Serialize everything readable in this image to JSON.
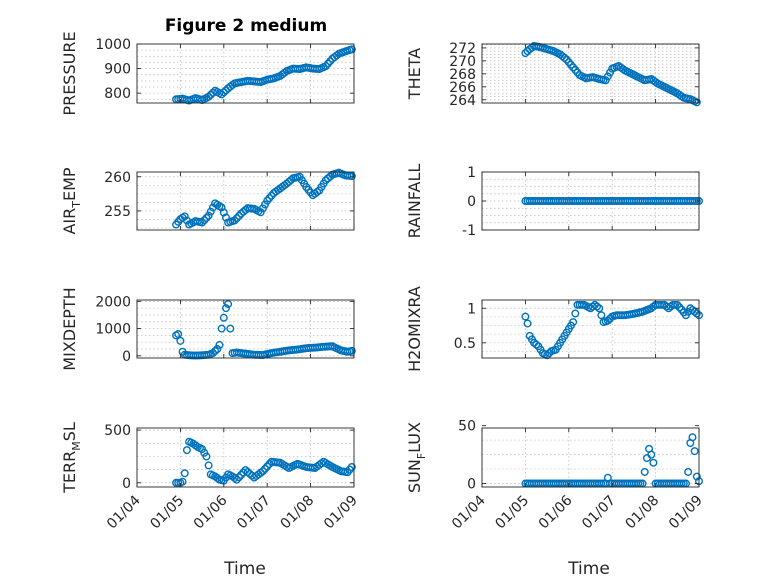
{
  "figure": {
    "title": "Figure 2 medium",
    "marker_color": "#0072BD",
    "x_tick_labels": [
      "01/04",
      "01/05",
      "01/06",
      "01/07",
      "01/08",
      "01/09"
    ],
    "x_label": "Time"
  },
  "chart_data": [
    {
      "type": "scatter",
      "name": "pressure",
      "ylabel": "PRESSURE",
      "ylim": [
        760,
        1000
      ],
      "yticks": [
        800,
        900,
        1000
      ],
      "xlim": [
        0,
        5
      ],
      "x": [
        0.9,
        1.05,
        1.2,
        1.35,
        1.5,
        1.65,
        1.8,
        1.95,
        2.1,
        2.25,
        2.4,
        2.55,
        2.7,
        2.85,
        3.0,
        3.15,
        3.3,
        3.45,
        3.6,
        3.75,
        3.9,
        4.05,
        4.2,
        4.35,
        4.5,
        4.65,
        4.8,
        4.95
      ],
      "y": [
        775,
        778,
        770,
        780,
        772,
        785,
        810,
        795,
        820,
        840,
        845,
        850,
        848,
        845,
        855,
        860,
        870,
        890,
        900,
        898,
        905,
        900,
        898,
        910,
        940,
        960,
        970,
        978
      ]
    },
    {
      "type": "scatter",
      "name": "theta",
      "ylabel": "THETA",
      "ylim": [
        263.5,
        272.6
      ],
      "yticks": [
        264,
        266,
        268,
        270,
        272
      ],
      "xlim": [
        0,
        5
      ],
      "x": [
        1.0,
        1.1,
        1.2,
        1.35,
        1.5,
        1.65,
        1.8,
        1.95,
        2.1,
        2.25,
        2.4,
        2.55,
        2.7,
        2.85,
        3.0,
        3.15,
        3.3,
        3.45,
        3.6,
        3.75,
        3.9,
        4.05,
        4.2,
        4.35,
        4.5,
        4.65,
        4.8,
        4.95
      ],
      "y": [
        271.2,
        271.8,
        272.3,
        272.1,
        271.8,
        271.5,
        271.0,
        270.2,
        269.0,
        267.8,
        267.3,
        267.5,
        267.2,
        267.0,
        268.8,
        269.2,
        268.5,
        268.0,
        267.5,
        267.0,
        267.2,
        266.5,
        266.0,
        265.5,
        265.0,
        264.3,
        264.1,
        263.6
      ]
    },
    {
      "type": "scatter",
      "name": "air_temp",
      "ylabel": "AIR_TEMP",
      "ylim": [
        252.2,
        260.7
      ],
      "yticks": [
        255,
        260
      ],
      "xlim": [
        0,
        5
      ],
      "x": [
        0.9,
        1.0,
        1.1,
        1.2,
        1.35,
        1.5,
        1.65,
        1.8,
        1.95,
        2.1,
        2.25,
        2.4,
        2.55,
        2.7,
        2.85,
        3.0,
        3.15,
        3.3,
        3.45,
        3.6,
        3.75,
        3.9,
        4.05,
        4.2,
        4.35,
        4.5,
        4.65,
        4.8,
        4.95
      ],
      "y": [
        253.0,
        253.8,
        254.2,
        253.0,
        253.5,
        253.3,
        254.3,
        256.1,
        255.5,
        253.3,
        253.6,
        254.6,
        255.4,
        255.3,
        254.8,
        256.5,
        257.6,
        258.3,
        259.0,
        259.8,
        260.0,
        258.5,
        257.3,
        258.0,
        259.5,
        260.3,
        260.6,
        260.2,
        260.1
      ]
    },
    {
      "type": "scatter",
      "name": "rainfall",
      "ylabel": "RAINFALL",
      "ylim": [
        -1,
        1
      ],
      "yticks": [
        -1,
        0,
        1
      ],
      "xlim": [
        0,
        5
      ],
      "x": [
        1.0,
        1.2,
        1.4,
        1.6,
        1.8,
        2.0,
        2.2,
        2.4,
        2.6,
        2.8,
        3.0,
        3.2,
        3.4,
        3.6,
        3.8,
        4.0,
        4.2,
        4.4,
        4.6,
        4.8,
        5.0
      ],
      "y": [
        0,
        0,
        0,
        0,
        0,
        0,
        0,
        0,
        0,
        0,
        0,
        0,
        0,
        0,
        0,
        0,
        0,
        0,
        0,
        0,
        0
      ]
    },
    {
      "type": "scatter",
      "name": "mixdepth",
      "ylabel": "MIXDEPTH",
      "ylim": [
        -80,
        2050
      ],
      "yticks": [
        0,
        1000,
        2000
      ],
      "xlim": [
        0,
        5
      ],
      "x": [
        0.9,
        0.95,
        1.0,
        1.05,
        1.1,
        1.2,
        1.35,
        1.5,
        1.65,
        1.75,
        1.85,
        1.9,
        1.95,
        2.0,
        2.05,
        2.1,
        2.15,
        2.2,
        2.3,
        2.5,
        2.7,
        2.9,
        3.1,
        3.3,
        3.5,
        3.7,
        3.9,
        4.1,
        4.3,
        4.5,
        4.7,
        4.85,
        4.95
      ],
      "y": [
        750,
        800,
        550,
        150,
        40,
        20,
        10,
        20,
        40,
        100,
        250,
        400,
        1000,
        1400,
        1750,
        1900,
        1000,
        100,
        120,
        80,
        40,
        30,
        100,
        150,
        200,
        230,
        280,
        300,
        330,
        350,
        200,
        150,
        180
      ]
    },
    {
      "type": "scatter",
      "name": "h2omixra",
      "ylabel": "H2OMIXRA",
      "ylim": [
        0.28,
        1.12
      ],
      "yticks": [
        0.5,
        1
      ],
      "xlim": [
        0,
        5
      ],
      "x": [
        1.0,
        1.05,
        1.1,
        1.2,
        1.3,
        1.4,
        1.5,
        1.6,
        1.7,
        1.8,
        1.9,
        2.0,
        2.1,
        2.2,
        2.35,
        2.5,
        2.6,
        2.7,
        2.8,
        2.9,
        3.0,
        3.1,
        3.3,
        3.5,
        3.7,
        3.9,
        4.0,
        4.1,
        4.2,
        4.3,
        4.4,
        4.5,
        4.6,
        4.7,
        4.8,
        4.9,
        5.0
      ],
      "y": [
        0.88,
        0.78,
        0.6,
        0.5,
        0.45,
        0.35,
        0.32,
        0.38,
        0.4,
        0.5,
        0.6,
        0.7,
        0.8,
        1.05,
        1.05,
        1.0,
        1.05,
        1.0,
        0.8,
        0.82,
        0.88,
        0.9,
        0.9,
        0.92,
        0.95,
        1.0,
        1.05,
        1.05,
        1.05,
        1.0,
        1.05,
        1.05,
        0.98,
        0.9,
        1.0,
        0.95,
        0.9
      ]
    },
    {
      "type": "scatter",
      "name": "terr_msl",
      "ylabel": "TERR_MSL",
      "ylim": [
        -40,
        520
      ],
      "yticks": [
        0,
        500
      ],
      "xlim": [
        0,
        5
      ],
      "x": [
        0.9,
        0.95,
        1.0,
        1.05,
        1.1,
        1.15,
        1.2,
        1.3,
        1.4,
        1.5,
        1.6,
        1.7,
        1.8,
        1.9,
        2.0,
        2.1,
        2.2,
        2.3,
        2.5,
        2.7,
        2.9,
        3.1,
        3.3,
        3.5,
        3.7,
        3.9,
        4.1,
        4.3,
        4.5,
        4.7,
        4.85,
        4.95
      ],
      "y": [
        0,
        0,
        0,
        10,
        90,
        310,
        390,
        370,
        340,
        320,
        250,
        80,
        60,
        30,
        20,
        80,
        60,
        30,
        120,
        50,
        110,
        200,
        190,
        140,
        180,
        150,
        140,
        200,
        150,
        110,
        100,
        150
      ]
    },
    {
      "type": "scatter",
      "name": "sun_flux",
      "ylabel": "SUN_FLUX",
      "ylim": [
        -3,
        48
      ],
      "yticks": [
        0,
        50
      ],
      "xlim": [
        0,
        5
      ],
      "x": [
        1.0,
        1.2,
        1.4,
        1.6,
        1.8,
        1.9,
        2.0,
        2.1,
        2.2,
        2.4,
        2.6,
        2.7,
        2.75,
        2.8,
        2.85,
        2.9,
        2.95,
        3.0,
        3.2,
        3.4,
        3.6,
        3.7,
        3.75,
        3.8,
        3.85,
        3.9,
        3.95,
        4.0,
        4.2,
        4.4,
        4.6,
        4.7,
        4.75,
        4.8,
        4.85,
        4.9,
        4.95,
        5.0
      ],
      "y": [
        0,
        0,
        0,
        0,
        0,
        0,
        0,
        0,
        0,
        0,
        0,
        0,
        0,
        0,
        0,
        5,
        0,
        0,
        0,
        0,
        0,
        0,
        10,
        22,
        30,
        25,
        18,
        0,
        0,
        0,
        0,
        0,
        10,
        35,
        40,
        28,
        6,
        2
      ]
    }
  ]
}
